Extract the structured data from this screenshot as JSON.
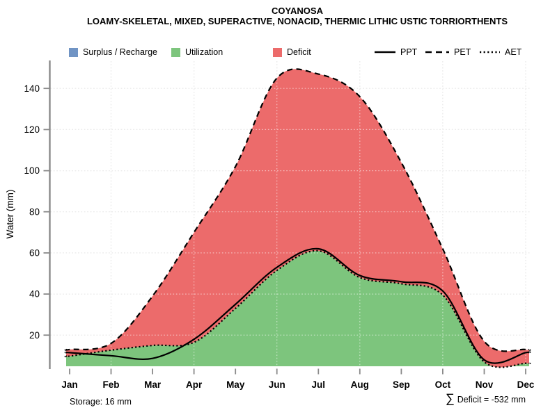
{
  "header": {
    "title": "COYANOSA",
    "subtitle": "LOAMY-SKELETAL, MIXED, SUPERACTIVE, NONACID, THERMIC LITHIC USTIC TORRIORTHENTS"
  },
  "legend": {
    "fills": [
      {
        "label": "Surplus / Recharge",
        "color": "#7094c4"
      },
      {
        "label": "Utilization",
        "color": "#7dc57d"
      },
      {
        "label": "Deficit",
        "color": "#ec6b6b"
      }
    ],
    "lines": [
      {
        "label": "PPT",
        "style": "solid"
      },
      {
        "label": "PET",
        "style": "dashed"
      },
      {
        "label": "AET",
        "style": "dotted"
      }
    ]
  },
  "footer": {
    "storage_label": "Storage: 16 mm",
    "sigma": "∑",
    "deficit_label": "Deficit = -532 mm"
  },
  "chart_data": {
    "type": "area",
    "title": "COYANOSA",
    "xlabel": "",
    "ylabel": "Water (mm)",
    "x": [
      "Jan",
      "Feb",
      "Mar",
      "Apr",
      "May",
      "Jun",
      "Jul",
      "Aug",
      "Sep",
      "Oct",
      "Nov",
      "Dec"
    ],
    "yticks": [
      20,
      40,
      60,
      80,
      100,
      120,
      140
    ],
    "ylim": [
      5,
      153
    ],
    "grid": true,
    "legend_position": "top",
    "series": [
      {
        "name": "PPT",
        "line": "solid",
        "values": [
          11.5,
          10,
          8.7,
          18,
          35,
          53,
          62,
          49,
          46,
          41.5,
          8,
          11.5
        ]
      },
      {
        "name": "PET",
        "line": "dashed",
        "values": [
          13,
          16,
          39,
          70,
          102,
          145,
          147,
          136,
          104,
          62,
          17,
          13
        ]
      },
      {
        "name": "AET",
        "line": "dotted",
        "values": [
          9.8,
          12.7,
          15,
          16.5,
          33,
          51.5,
          61,
          48,
          45,
          39.5,
          7,
          6.3
        ]
      }
    ],
    "areas": [
      {
        "name": "utilization",
        "between": [
          "AET",
          "baseline"
        ],
        "color": "#7dc57d",
        "render": true
      },
      {
        "name": "deficit",
        "between": [
          "PET",
          "AET"
        ],
        "color": "#ec6b6b",
        "render": true
      },
      {
        "name": "surplus",
        "between": [
          "PPT",
          "PET"
        ],
        "color": "#7094c4",
        "render": false
      }
    ],
    "annotations": {
      "storage_mm": 16,
      "sum_deficit_mm": -532
    }
  }
}
